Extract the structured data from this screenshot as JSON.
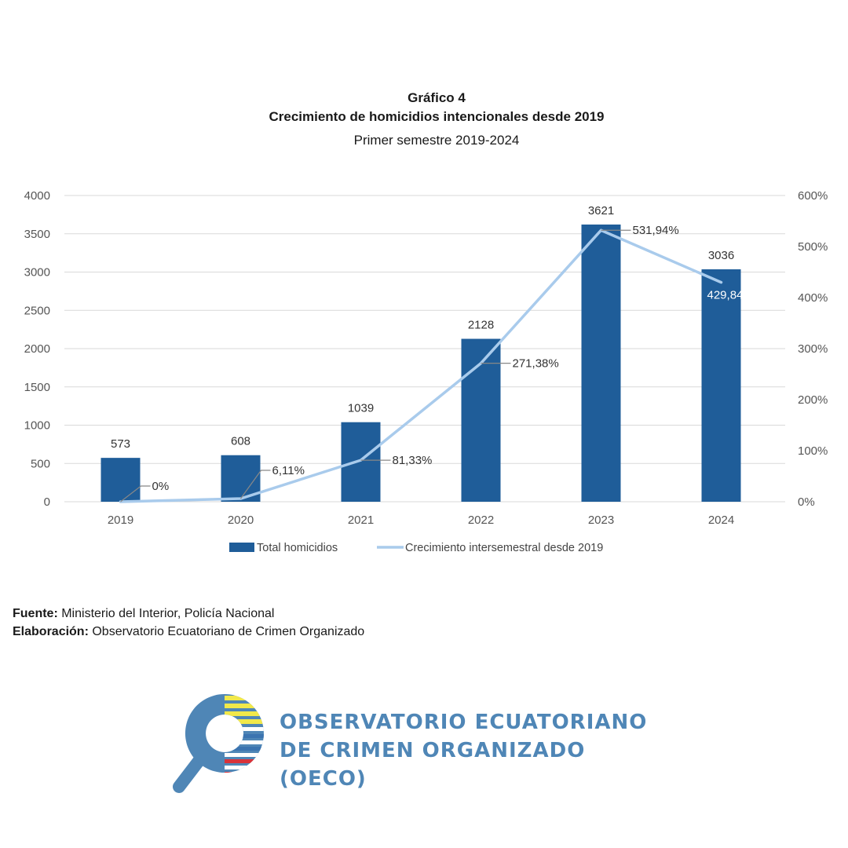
{
  "header": {
    "line1": "Gráfico 4",
    "line2": "Crecimiento de homicidios intencionales desde 2019",
    "line3": "Primer semestre 2019-2024"
  },
  "chart_data": {
    "type": "bar",
    "categories": [
      "2019",
      "2020",
      "2021",
      "2022",
      "2023",
      "2024"
    ],
    "series": [
      {
        "name": "Total homicidios",
        "type": "bar",
        "axis": "left",
        "values": [
          573,
          608,
          1039,
          2128,
          3621,
          3036
        ],
        "labels": [
          "573",
          "608",
          "1039",
          "2128",
          "3621",
          "3036"
        ]
      },
      {
        "name": "Crecimiento intersemestral desde 2019",
        "type": "line",
        "axis": "right",
        "values": [
          0,
          6.11,
          81.33,
          271.38,
          531.94,
          429.84
        ],
        "labels": [
          "0%",
          "6,11%",
          "81,33%",
          "271,38%",
          "531,94%",
          "429,84"
        ]
      }
    ],
    "y_left": {
      "min": 0,
      "max": 4000,
      "ticks": [
        "0",
        "500",
        "1000",
        "1500",
        "2000",
        "2500",
        "3000",
        "3500",
        "4000"
      ]
    },
    "y_right": {
      "min": 0,
      "max": 600,
      "ticks": [
        "0%",
        "100%",
        "200%",
        "300%",
        "400%",
        "500%",
        "600%"
      ]
    },
    "grid": true,
    "legend": "bottom",
    "colors": {
      "bar": "#1f5d99",
      "line": "#a9cbec",
      "grid": "#d9d9d9",
      "axis_text": "#555555"
    }
  },
  "footer": {
    "fuente_label": "Fuente:",
    "fuente_value": " Ministerio del Interior, Policía Nacional",
    "elaboracion_label": "Elaboración:",
    "elaboracion_value": " Observatorio Ecuatoriano de Crimen Organizado"
  },
  "logo": {
    "line1": "OBSERVATORIO ECUATORIANO",
    "line2": "DE CRIMEN ORGANIZADO (OECO)"
  }
}
